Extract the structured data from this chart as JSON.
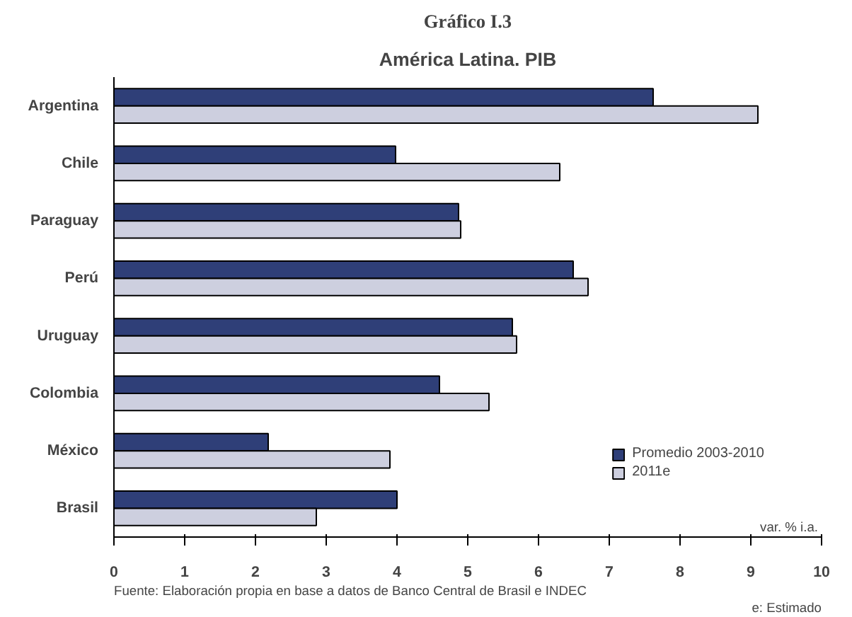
{
  "chart_data": {
    "type": "bar",
    "orientation": "horizontal",
    "title": "Gráfico I.3",
    "subtitle": "América Latina. PIB",
    "categories": [
      "Argentina",
      "Chile",
      "Paraguay",
      "Perú",
      "Uruguay",
      "Colombia",
      "México",
      "Brasil"
    ],
    "series": [
      {
        "name": "Promedio 2003-2010",
        "color": "#2f3f78",
        "values": [
          7.62,
          3.98,
          4.87,
          6.49,
          5.63,
          4.6,
          2.18,
          4.0
        ]
      },
      {
        "name": "2011e",
        "color": "#cdcfdf",
        "values": [
          9.1,
          6.3,
          4.9,
          6.7,
          5.69,
          5.3,
          3.9,
          2.86
        ]
      }
    ],
    "xlim": [
      0,
      10
    ],
    "xticks": [
      0,
      1,
      2,
      3,
      4,
      5,
      6,
      7,
      8,
      9,
      10
    ],
    "grid": false,
    "legend": "bottom right",
    "annotations": [
      "var. % i.a.",
      "Fuente: Elaboración propia en base a datos de Banco Central de Brasil e INDEC",
      "e: Estimado"
    ]
  }
}
